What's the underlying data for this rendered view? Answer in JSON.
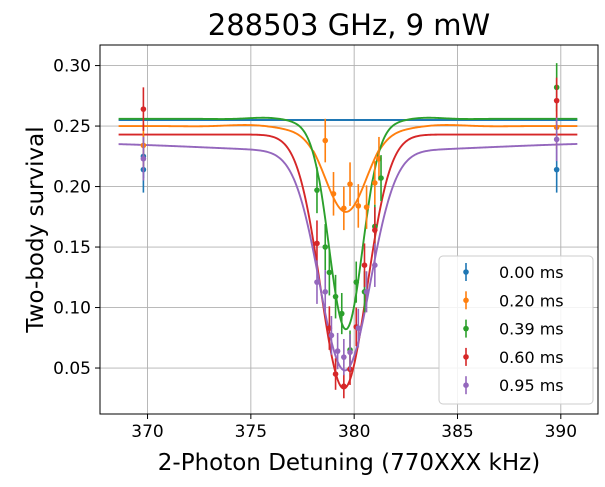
{
  "chart_data": {
    "type": "scatter",
    "title": "288503 GHz, 9 mW",
    "xlabel": "2-Photon Detuning (770XXX kHz)",
    "ylabel": "Two-body survival",
    "xlim": [
      367.7,
      391.8
    ],
    "ylim": [
      0.012,
      0.317
    ],
    "xticks": [
      370,
      375,
      380,
      385,
      390
    ],
    "yticks": [
      0.05,
      0.1,
      0.15,
      0.2,
      0.25,
      0.3
    ],
    "xtick_labels": [
      "370",
      "375",
      "380",
      "385",
      "390"
    ],
    "ytick_labels": [
      "0.05",
      "0.10",
      "0.15",
      "0.20",
      "0.25",
      "0.30"
    ],
    "grid": true,
    "legend_position": "lower-right",
    "series": [
      {
        "name": "0.00 ms",
        "color": "#1f77b4",
        "points": [
          {
            "x": 369.8,
            "y": 0.214,
            "err": 0.019
          },
          {
            "x": 369.8,
            "y": 0.225,
            "err": 0.018
          },
          {
            "x": 389.8,
            "y": 0.214,
            "err": 0.019
          }
        ],
        "fit": {
          "baseline": 0.255,
          "center": 379.5,
          "sigma": 1.2,
          "depth": 0.0,
          "ripple": 0.0
        }
      },
      {
        "name": "0.20 ms",
        "color": "#ff7f0e",
        "points": [
          {
            "x": 369.8,
            "y": 0.234,
            "err": 0.018
          },
          {
            "x": 378.6,
            "y": 0.238,
            "err": 0.018
          },
          {
            "x": 379.0,
            "y": 0.194,
            "err": 0.018
          },
          {
            "x": 379.5,
            "y": 0.182,
            "err": 0.018
          },
          {
            "x": 379.8,
            "y": 0.202,
            "err": 0.018
          },
          {
            "x": 380.2,
            "y": 0.184,
            "err": 0.018
          },
          {
            "x": 380.6,
            "y": 0.183,
            "err": 0.018
          },
          {
            "x": 381.0,
            "y": 0.203,
            "err": 0.018
          },
          {
            "x": 381.2,
            "y": 0.223,
            "err": 0.018
          },
          {
            "x": 389.8,
            "y": 0.249,
            "err": 0.018
          }
        ],
        "fit": {
          "baseline": 0.25,
          "center": 379.6,
          "sigma": 1.0,
          "depth": 0.071,
          "ripple": 0.003
        }
      },
      {
        "name": "0.39 ms",
        "color": "#2ca02c",
        "points": [
          {
            "x": 378.2,
            "y": 0.197,
            "err": 0.019
          },
          {
            "x": 378.6,
            "y": 0.15,
            "err": 0.019
          },
          {
            "x": 378.8,
            "y": 0.129,
            "err": 0.019
          },
          {
            "x": 379.1,
            "y": 0.109,
            "err": 0.018
          },
          {
            "x": 379.4,
            "y": 0.095,
            "err": 0.017
          },
          {
            "x": 379.8,
            "y": 0.065,
            "err": 0.016
          },
          {
            "x": 380.1,
            "y": 0.121,
            "err": 0.017
          },
          {
            "x": 380.5,
            "y": 0.113,
            "err": 0.017
          },
          {
            "x": 381.0,
            "y": 0.167,
            "err": 0.018
          },
          {
            "x": 381.3,
            "y": 0.207,
            "err": 0.019
          },
          {
            "x": 389.8,
            "y": 0.282,
            "err": 0.02
          }
        ],
        "fit": {
          "baseline": 0.256,
          "center": 379.6,
          "sigma": 0.82,
          "depth": 0.174,
          "ripple": 0.003
        }
      },
      {
        "name": "0.60 ms",
        "color": "#d62728",
        "points": [
          {
            "x": 369.8,
            "y": 0.264,
            "err": 0.018
          },
          {
            "x": 378.2,
            "y": 0.153,
            "err": 0.019
          },
          {
            "x": 378.8,
            "y": 0.083,
            "err": 0.018
          },
          {
            "x": 379.1,
            "y": 0.045,
            "err": 0.013
          },
          {
            "x": 379.5,
            "y": 0.035,
            "err": 0.01
          },
          {
            "x": 379.8,
            "y": 0.049,
            "err": 0.013
          },
          {
            "x": 380.1,
            "y": 0.084,
            "err": 0.016
          },
          {
            "x": 380.5,
            "y": 0.135,
            "err": 0.018
          },
          {
            "x": 381.0,
            "y": 0.164,
            "err": 0.019
          },
          {
            "x": 389.8,
            "y": 0.271,
            "err": 0.019
          }
        ],
        "fit": {
          "baseline": 0.243,
          "center": 379.5,
          "sigma": 1.12,
          "depth": 0.21,
          "ripple": 0.0
        }
      },
      {
        "name": "0.95 ms",
        "color": "#9467bd",
        "points": [
          {
            "x": 369.8,
            "y": 0.223,
            "err": 0.018
          },
          {
            "x": 378.2,
            "y": 0.121,
            "err": 0.018
          },
          {
            "x": 378.6,
            "y": 0.113,
            "err": 0.018
          },
          {
            "x": 378.9,
            "y": 0.077,
            "err": 0.016
          },
          {
            "x": 379.2,
            "y": 0.064,
            "err": 0.015
          },
          {
            "x": 379.5,
            "y": 0.059,
            "err": 0.015
          },
          {
            "x": 379.8,
            "y": 0.063,
            "err": 0.015
          },
          {
            "x": 380.2,
            "y": 0.083,
            "err": 0.016
          },
          {
            "x": 380.6,
            "y": 0.113,
            "err": 0.017
          },
          {
            "x": 381.0,
            "y": 0.135,
            "err": 0.018
          },
          {
            "x": 389.8,
            "y": 0.239,
            "err": 0.018
          }
        ],
        "fit": {
          "baseline": 0.237,
          "center": 379.55,
          "sigma": 1.22,
          "depth": 0.181,
          "ripple": 0.0,
          "wing": 0.008
        }
      }
    ]
  }
}
